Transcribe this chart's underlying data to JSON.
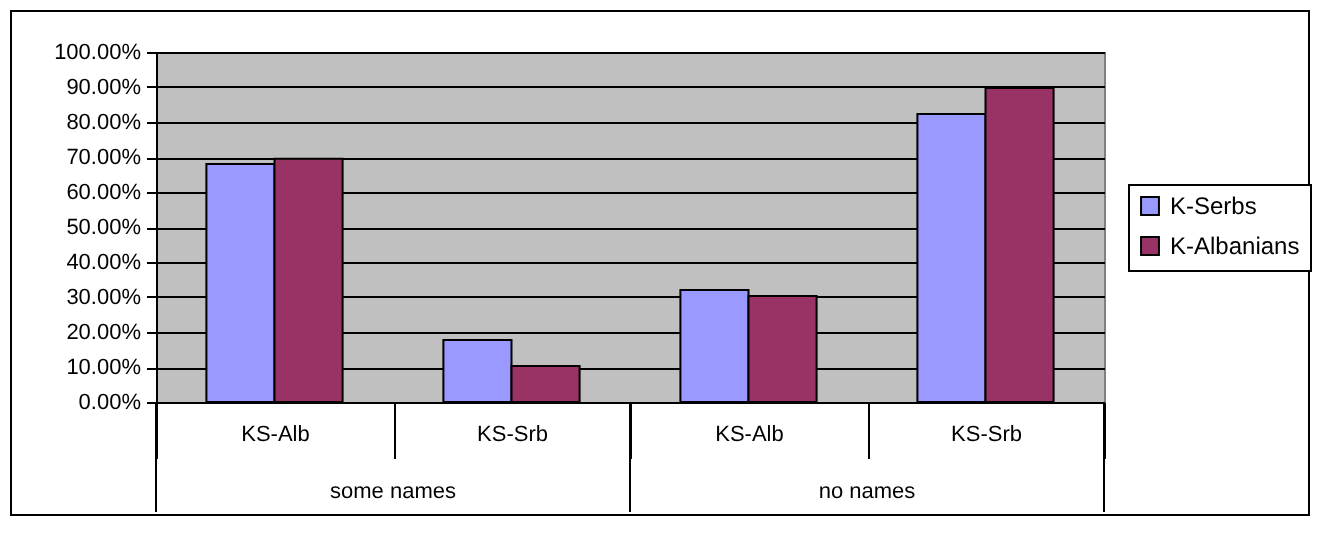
{
  "chart_data": {
    "type": "bar",
    "categories": [
      "KS-Alb",
      "KS-Srb",
      "KS-Alb",
      "KS-Srb"
    ],
    "annotations": [
      "some names",
      "no names"
    ],
    "series": [
      {
        "name": "K-Serbs",
        "color": "#9999ff",
        "values": [
          68.0,
          17.7,
          32.0,
          82.3
        ]
      },
      {
        "name": "K-Albanians",
        "color": "#993366",
        "values": [
          69.5,
          10.3,
          30.3,
          89.7
        ]
      }
    ],
    "ylim": [
      0,
      100
    ],
    "yticks": [
      {
        "value": 0,
        "label": "0.00%"
      },
      {
        "value": 10,
        "label": "10.00%"
      },
      {
        "value": 20,
        "label": "20.00%"
      },
      {
        "value": 30,
        "label": "30.00%"
      },
      {
        "value": 40,
        "label": "40.00%"
      },
      {
        "value": 50,
        "label": "50.00%"
      },
      {
        "value": 60,
        "label": "60.00%"
      },
      {
        "value": 70,
        "label": "70.00%"
      },
      {
        "value": 80,
        "label": "80.00%"
      },
      {
        "value": 90,
        "label": "90.00%"
      },
      {
        "value": 100,
        "label": "100.00%"
      }
    ],
    "grid": "y",
    "legend": "right"
  }
}
